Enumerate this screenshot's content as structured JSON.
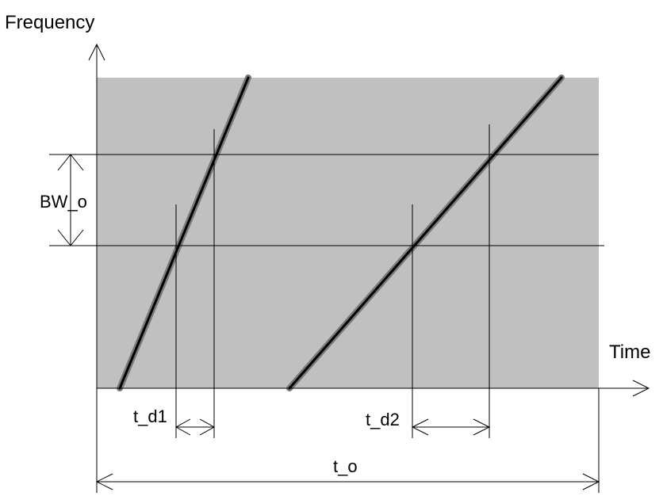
{
  "labels": {
    "y_axis": "Frequency",
    "x_axis": "Time",
    "bandwidth": "BW_o",
    "delay_1": "t_d1",
    "delay_2": "t_d2",
    "observation_time": "t_o"
  },
  "colors": {
    "background": "#ffffff",
    "shaded_region": "#c0c0c0",
    "line": "#000000",
    "chirp_core": "#000000",
    "chirp_halo": "#7a7a7a"
  }
}
